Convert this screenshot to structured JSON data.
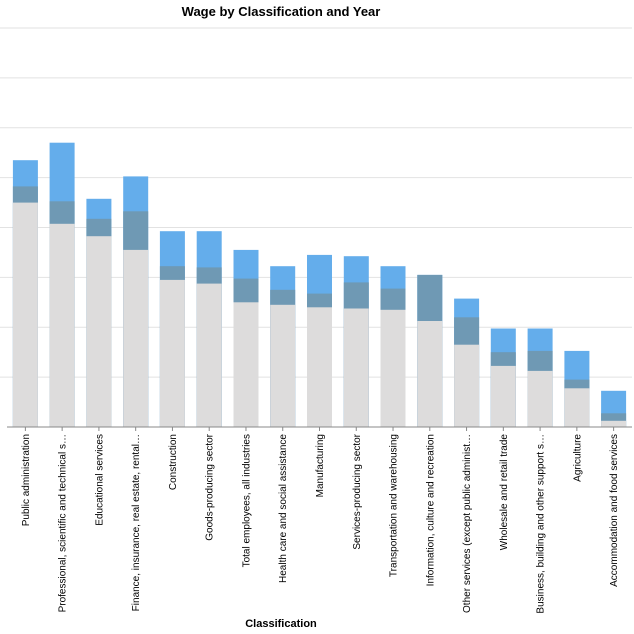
{
  "chart_data": {
    "type": "bar",
    "title": "Wage by Classification and Year",
    "xlabel": "Classification",
    "ylabel": "",
    "ylim": [
      0,
      1.6
    ],
    "grid": true,
    "stacked": false,
    "categories": [
      "Public administration",
      "Professional, scientific and technical s…",
      "Educational services",
      "Finance, insurance, real estate, rental…",
      "Construction",
      "Goods-producing sector",
      "Total employees, all industries",
      "Health care and social assistance",
      "Manufacturing",
      "Services-producing sector",
      "Transportation and warehousing",
      "Information, culture and recreation",
      "Other services (except public administ…",
      "Wholesale and retail trade",
      "Business, building and other support s…",
      "Agriculture",
      "Accommodation and food services"
    ],
    "series": [
      {
        "color": "#64adeb",
        "values": [
          1.07,
          1.14,
          0.915,
          1.005,
          0.785,
          0.785,
          0.71,
          0.645,
          0.69,
          0.685,
          0.645,
          0.61,
          0.515,
          0.395,
          0.395,
          0.305,
          0.145
        ]
      },
      {
        "color": "#6f99b4",
        "values": [
          0.965,
          0.905,
          0.835,
          0.865,
          0.645,
          0.64,
          0.595,
          0.55,
          0.535,
          0.58,
          0.555,
          0.61,
          0.44,
          0.3,
          0.305,
          0.19,
          0.055
        ]
      },
      {
        "color": "#dddcdc",
        "values": [
          0.9,
          0.815,
          0.765,
          0.71,
          0.59,
          0.575,
          0.5,
          0.49,
          0.48,
          0.475,
          0.47,
          0.425,
          0.33,
          0.245,
          0.225,
          0.155,
          0.025
        ]
      }
    ]
  }
}
